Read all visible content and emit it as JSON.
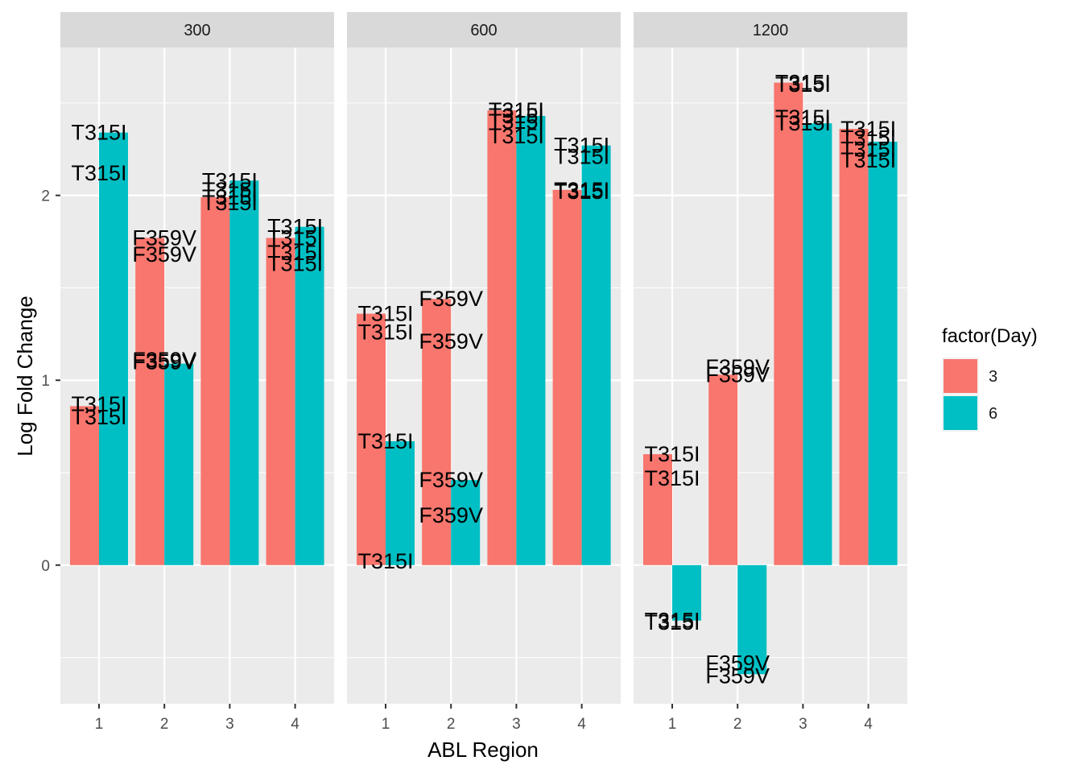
{
  "chart_data": {
    "type": "bar",
    "title": "",
    "xlabel": "ABL Region",
    "ylabel": "Log Fold Change",
    "ylim": [
      -0.75,
      2.8
    ],
    "yticks": [
      0,
      1,
      2
    ],
    "categories": [
      "1",
      "2",
      "3",
      "4"
    ],
    "legend": {
      "title": "factor(Day)",
      "position": "right",
      "entries": [
        {
          "label": "3",
          "color": "#F8766D"
        },
        {
          "label": "6",
          "color": "#00BFC4"
        }
      ]
    },
    "facets": [
      {
        "label": "300",
        "series": [
          {
            "name": "3",
            "values": [
              0.86,
              1.77,
              1.99,
              1.77
            ]
          },
          {
            "name": "6",
            "values": [
              2.34,
              1.09,
              2.08,
              1.83
            ]
          }
        ],
        "annotations": [
          {
            "category": "1",
            "y": 2.34,
            "text": "T315I"
          },
          {
            "category": "1",
            "y": 2.12,
            "text": "T315I"
          },
          {
            "category": "1",
            "y": 0.87,
            "text": "T315I"
          },
          {
            "category": "1",
            "y": 0.8,
            "text": "T315I"
          },
          {
            "category": "2",
            "y": 1.77,
            "text": "F359V"
          },
          {
            "category": "2",
            "y": 1.68,
            "text": "F359V"
          },
          {
            "category": "2",
            "y": 1.11,
            "text": "F359V"
          },
          {
            "category": "2",
            "y": 1.1,
            "text": "F359V"
          },
          {
            "category": "3",
            "y": 2.08,
            "text": "T315I"
          },
          {
            "category": "3",
            "y": 2.03,
            "text": "T315I"
          },
          {
            "category": "3",
            "y": 1.99,
            "text": "T315I"
          },
          {
            "category": "3",
            "y": 1.96,
            "text": "T315I"
          },
          {
            "category": "4",
            "y": 1.83,
            "text": "T315I"
          },
          {
            "category": "4",
            "y": 1.77,
            "text": "T315I"
          },
          {
            "category": "4",
            "y": 1.69,
            "text": "T315I"
          },
          {
            "category": "4",
            "y": 1.63,
            "text": "T315I"
          }
        ]
      },
      {
        "label": "600",
        "series": [
          {
            "name": "3",
            "values": [
              1.36,
              1.44,
              2.46,
              2.03
            ]
          },
          {
            "name": "6",
            "values": [
              0.67,
              0.46,
              2.43,
              2.27
            ]
          }
        ],
        "annotations": [
          {
            "category": "1",
            "y": 1.36,
            "text": "T315I"
          },
          {
            "category": "1",
            "y": 1.26,
            "text": "T315I"
          },
          {
            "category": "1",
            "y": 0.67,
            "text": "T315I"
          },
          {
            "category": "1",
            "y": 0.02,
            "text": "T315I"
          },
          {
            "category": "2",
            "y": 1.44,
            "text": "F359V"
          },
          {
            "category": "2",
            "y": 1.21,
            "text": "F359V"
          },
          {
            "category": "2",
            "y": 0.46,
            "text": "F359V"
          },
          {
            "category": "2",
            "y": 0.27,
            "text": "F359V"
          },
          {
            "category": "3",
            "y": 2.46,
            "text": "T315I"
          },
          {
            "category": "3",
            "y": 2.43,
            "text": "T315I"
          },
          {
            "category": "3",
            "y": 2.4,
            "text": "T315I"
          },
          {
            "category": "3",
            "y": 2.32,
            "text": "T315I"
          },
          {
            "category": "4",
            "y": 2.27,
            "text": "T315I"
          },
          {
            "category": "4",
            "y": 2.21,
            "text": "T315I"
          },
          {
            "category": "4",
            "y": 2.03,
            "text": "T315I"
          },
          {
            "category": "4",
            "y": 2.02,
            "text": "T315I"
          }
        ]
      },
      {
        "label": "1200",
        "series": [
          {
            "name": "3",
            "values": [
              0.6,
              1.03,
              2.61,
              2.36
            ]
          },
          {
            "name": "6",
            "values": [
              -0.3,
              -0.59,
              2.39,
              2.29
            ]
          }
        ],
        "annotations": [
          {
            "category": "1",
            "y": 0.6,
            "text": "T315I"
          },
          {
            "category": "1",
            "y": 0.47,
            "text": "T315I"
          },
          {
            "category": "1",
            "y": -0.3,
            "text": "T315I"
          },
          {
            "category": "1",
            "y": -0.31,
            "text": "T315I"
          },
          {
            "category": "2",
            "y": 1.07,
            "text": "F359V"
          },
          {
            "category": "2",
            "y": 1.03,
            "text": "F359V"
          },
          {
            "category": "2",
            "y": -0.53,
            "text": "F359V"
          },
          {
            "category": "2",
            "y": -0.6,
            "text": "F359V"
          },
          {
            "category": "3",
            "y": 2.61,
            "text": "T315I"
          },
          {
            "category": "3",
            "y": 2.6,
            "text": "T315I"
          },
          {
            "category": "3",
            "y": 2.42,
            "text": "T315I"
          },
          {
            "category": "3",
            "y": 2.39,
            "text": "T315I"
          },
          {
            "category": "4",
            "y": 2.36,
            "text": "T315I"
          },
          {
            "category": "4",
            "y": 2.31,
            "text": "T315I"
          },
          {
            "category": "4",
            "y": 2.25,
            "text": "T315I"
          },
          {
            "category": "4",
            "y": 2.19,
            "text": "T315I"
          }
        ]
      }
    ]
  }
}
